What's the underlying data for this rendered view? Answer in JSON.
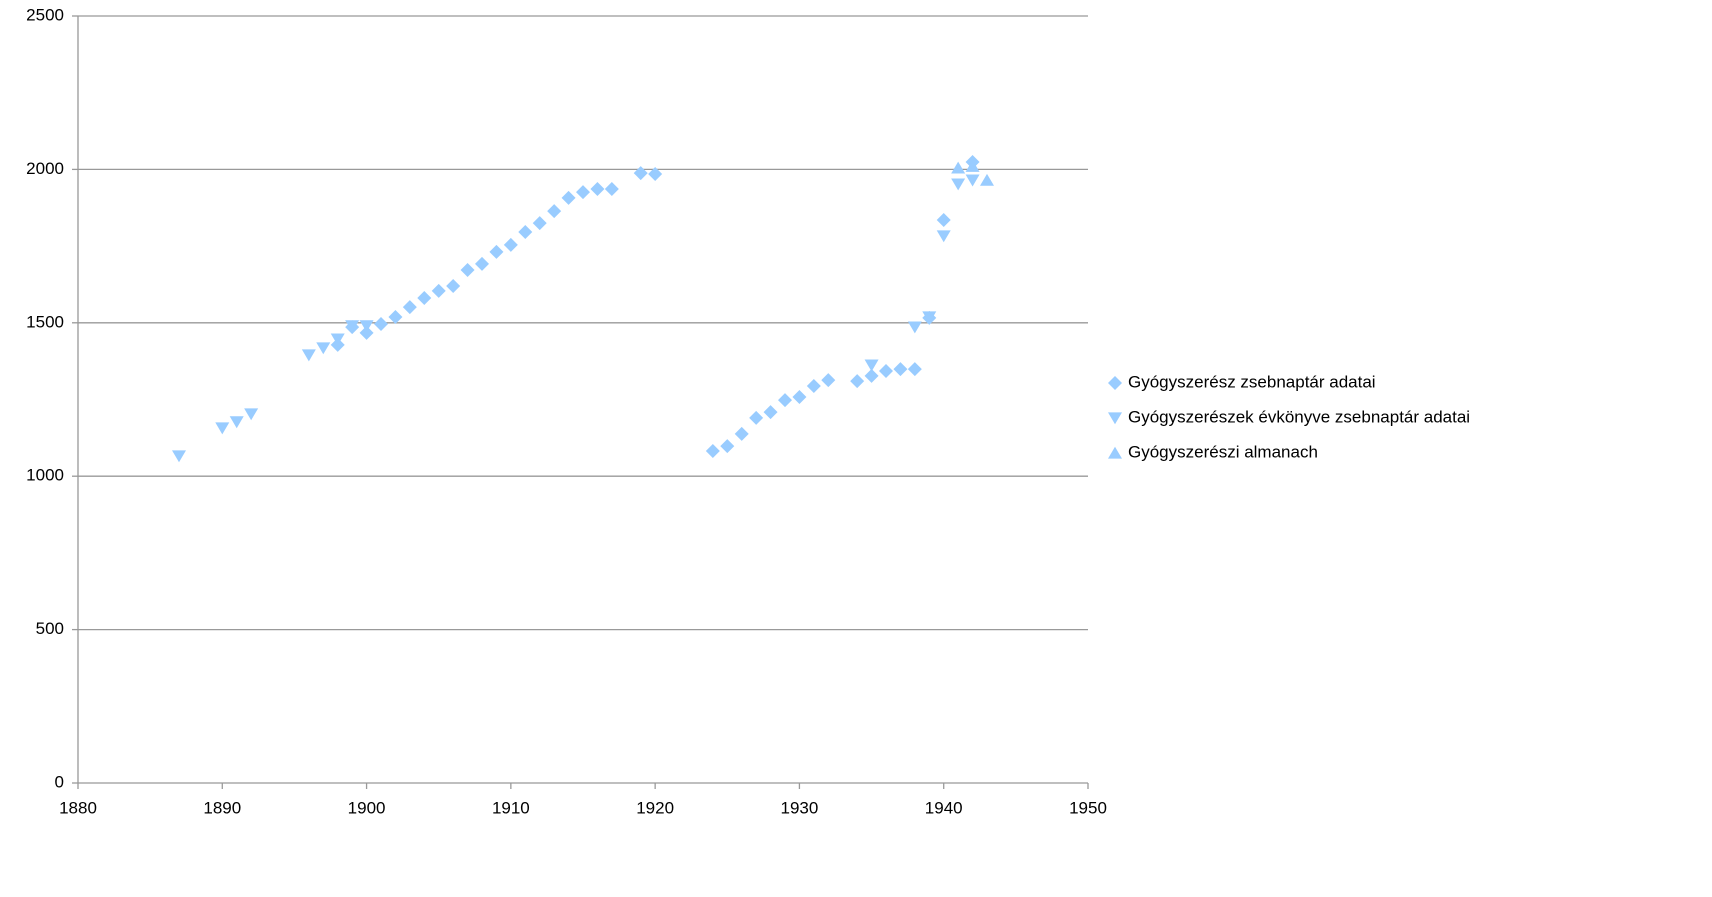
{
  "chart_data": {
    "type": "scatter",
    "xlim": [
      1880,
      1950
    ],
    "xticks": [
      1880,
      1890,
      1900,
      1910,
      1920,
      1930,
      1940,
      1950
    ],
    "ylim": [
      0,
      2500
    ],
    "yticks": [
      0,
      500,
      1000,
      1500,
      2000,
      2500
    ],
    "grid": true,
    "legend": "right",
    "series": [
      {
        "name": "Gyógyszerész zsebnaptár adatai",
        "color": "#99ccff",
        "marker": "diamond",
        "x": [
          1898,
          1899,
          1900,
          1901,
          1902,
          1903,
          1904,
          1905,
          1906,
          1907,
          1908,
          1909,
          1910,
          1911,
          1912,
          1913,
          1914,
          1915,
          1916,
          1917,
          1919,
          1920,
          1924,
          1925,
          1926,
          1927,
          1928,
          1929,
          1930,
          1931,
          1932,
          1934,
          1935,
          1936,
          1937,
          1938,
          1939,
          1940,
          1942
        ],
        "values": [
          1428,
          1486,
          1467,
          1496,
          1519,
          1551,
          1581,
          1604,
          1620,
          1672,
          1692,
          1731,
          1754,
          1796,
          1825,
          1864,
          1907,
          1926,
          1936,
          1936,
          1988,
          1985,
          1082,
          1098,
          1138,
          1190,
          1209,
          1248,
          1258,
          1294,
          1313,
          1310,
          1327,
          1343,
          1349,
          1349,
          1516,
          1835,
          2024
        ]
      },
      {
        "name": "Gyógyszerészek évkönyve zsebnaptár adatai",
        "color": "#99ccff",
        "marker": "triangle-down",
        "x": [
          1887,
          1890,
          1891,
          1892,
          1896,
          1897,
          1898,
          1899,
          1900,
          1935,
          1938,
          1939,
          1940,
          1941,
          1942
        ],
        "values": [
          1066,
          1157,
          1177,
          1203,
          1395,
          1418,
          1447,
          1490,
          1490,
          1362,
          1486,
          1519,
          1783,
          1952,
          1965
        ]
      },
      {
        "name": "Gyógyszerészi almanach",
        "color": "#99ccff",
        "marker": "triangle-up",
        "x": [
          1941,
          1942,
          1943
        ],
        "values": [
          2005,
          2010,
          1965
        ]
      }
    ]
  }
}
